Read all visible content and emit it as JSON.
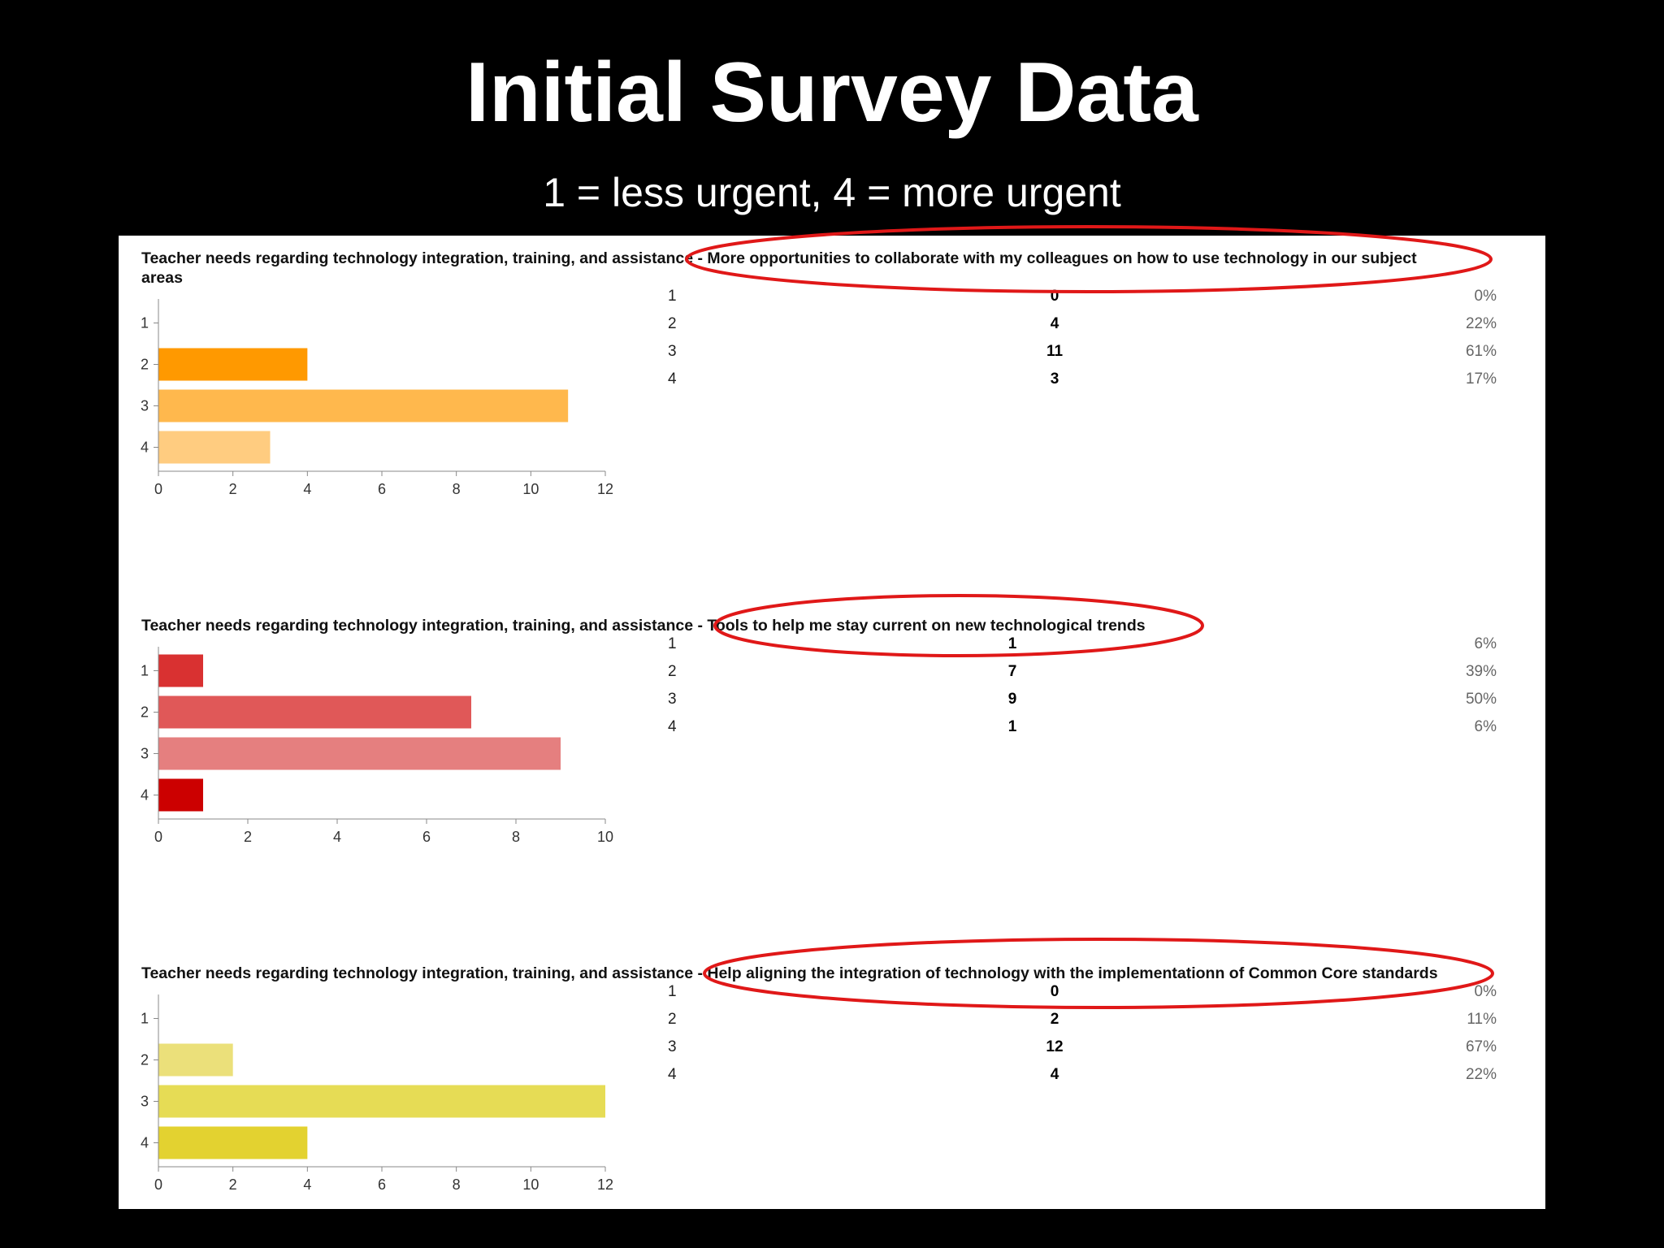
{
  "slide": {
    "title": "Initial Survey Data",
    "subtitle": "1 = less urgent, 4 = more urgent"
  },
  "colors": {
    "background": "#000000",
    "panel": "#ffffff",
    "highlight_ellipse": "#e01818"
  },
  "chart_data": [
    {
      "type": "bar",
      "orientation": "horizontal",
      "title_main": "Teacher needs regarding technology integration, training, and assistance - More opportunities to collaborate with my colleagues on how to use technology in our subject",
      "title_cont": "areas",
      "categories": [
        "1",
        "2",
        "3",
        "4"
      ],
      "values": [
        0,
        4,
        11,
        3
      ],
      "percents": [
        "0%",
        "22%",
        "61%",
        "17%"
      ],
      "xlim": [
        0,
        12
      ],
      "xticks": [
        "0",
        "2",
        "4",
        "6",
        "8",
        "10",
        "12"
      ],
      "bar_colors": [
        "#ff9900",
        "#ff9900",
        "#ffb84d",
        "#ffcc80"
      ]
    },
    {
      "type": "bar",
      "orientation": "horizontal",
      "title_main": "Teacher needs regarding technology integration, training, and assistance - Tools to help me stay current on new technological trends",
      "title_cont": "",
      "categories": [
        "1",
        "2",
        "3",
        "4"
      ],
      "values": [
        1,
        7,
        9,
        1
      ],
      "percents": [
        "6%",
        "39%",
        "50%",
        "6%"
      ],
      "xlim": [
        0,
        10
      ],
      "xticks": [
        "0",
        "2",
        "4",
        "6",
        "8",
        "10"
      ],
      "bar_colors": [
        "#d93131",
        "#e05858",
        "#e57f7f",
        "#cc0000"
      ]
    },
    {
      "type": "bar",
      "orientation": "horizontal",
      "title_main": "Teacher needs regarding technology integration, training, and assistance - Help aligning the integration of technology with the implementationn of Common Core standards",
      "title_cont": "",
      "categories": [
        "1",
        "2",
        "3",
        "4"
      ],
      "values": [
        0,
        2,
        12,
        4
      ],
      "percents": [
        "0%",
        "11%",
        "67%",
        "22%"
      ],
      "xlim": [
        0,
        12
      ],
      "xticks": [
        "0",
        "2",
        "4",
        "6",
        "8",
        "10",
        "12"
      ],
      "bar_colors": [
        "#ebe07a",
        "#ebe07a",
        "#e6dc55",
        "#e3d230"
      ]
    }
  ]
}
